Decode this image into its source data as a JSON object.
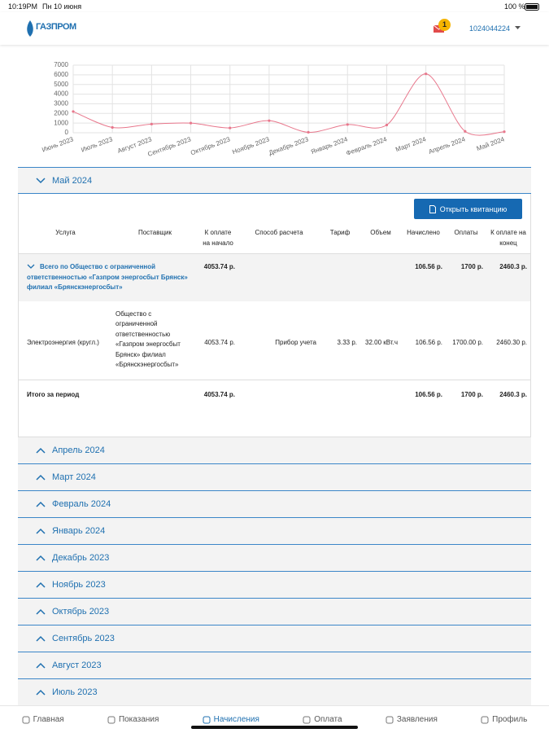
{
  "status_bar": {
    "time": "10:19PM",
    "date": "Пн 10 июня",
    "battery": "100 %"
  },
  "header": {
    "logo": "ГАЗПРОМ",
    "badge": "1",
    "account": "1024044224"
  },
  "chart_data": {
    "type": "line",
    "categories": [
      "Июнь 2023",
      "Июль 2023",
      "Август 2023",
      "Сентябрь 2023",
      "Октябрь 2023",
      "Ноябрь 2023",
      "Декабрь 2023",
      "Январь 2024",
      "Февраль 2024",
      "Март 2024",
      "Апрель 2024",
      "Май 2024"
    ],
    "values": [
      2200,
      550,
      900,
      1000,
      500,
      1250,
      50,
      850,
      800,
      6100,
      150,
      107
    ],
    "color": "#e8778c",
    "ylim": [
      0,
      7000
    ],
    "yticks": [
      0,
      1000,
      2000,
      3000,
      4000,
      5000,
      6000,
      7000
    ],
    "grid": true
  },
  "section_open": {
    "title": "Май 2024",
    "button": "Открыть квитанцию",
    "table": {
      "headers": [
        "Услуга",
        "Поставщик",
        "К оплате на начало",
        "Способ расчета",
        "Тариф",
        "Объем",
        "Начислено",
        "Оплаты",
        "К оплате на конец"
      ],
      "rows": [
        [
          "Всего по Общество с ограниченной ответственностью «Газпром энергосбыт Брянск» филиал «Брянскэнергосбыт»",
          null,
          "4053.74 р.",
          null,
          null,
          null,
          "106.56 р.",
          "1700 р.",
          "2460.3 р."
        ],
        [
          "Электроэнергия (кругл.)",
          "Общество с ограниченной ответственностью «Газпром энергосбыт Брянск» филиал «Брянскэнергосбыт»",
          "4053.74 р.",
          "Прибор учета",
          "3.33 р.",
          "32.00 кВт.ч",
          "106.56 р.",
          "1700.00 р.",
          "2460.30 р."
        ],
        [
          "Итого за период",
          null,
          "4053.74 р.",
          null,
          null,
          null,
          "106.56 р.",
          "1700 р.",
          "2460.3 р."
        ]
      ]
    }
  },
  "sections_collapsed": [
    "Апрель 2024",
    "Март 2024",
    "Февраль 2024",
    "Январь 2024",
    "Декабрь 2023",
    "Ноябрь 2023",
    "Октябрь 2023",
    "Сентябрь 2023",
    "Август 2023",
    "Июль 2023"
  ],
  "nav": [
    "Главная",
    "Показания",
    "Начисления",
    "Оплата",
    "Заявления",
    "Профиль"
  ]
}
